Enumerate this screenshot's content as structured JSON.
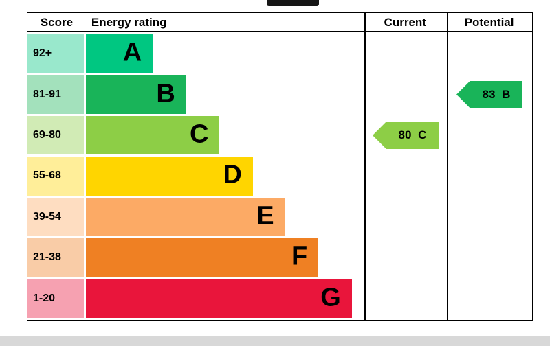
{
  "header": {
    "score": "Score",
    "energy_rating": "Energy rating",
    "current": "Current",
    "potential": "Potential"
  },
  "chart_data": {
    "type": "bar",
    "title": "Energy rating",
    "orientation": "horizontal",
    "bands": [
      {
        "letter": "A",
        "score_range": "92+",
        "color": "#00c781",
        "tint": "#99e8cc",
        "width_pct": 24
      },
      {
        "letter": "B",
        "score_range": "81-91",
        "color": "#19b459",
        "tint": "#a3e1bc",
        "width_pct": 36
      },
      {
        "letter": "C",
        "score_range": "69-80",
        "color": "#8dce46",
        "tint": "#d1ebb5",
        "width_pct": 48
      },
      {
        "letter": "D",
        "score_range": "55-68",
        "color": "#ffd500",
        "tint": "#ffee99",
        "width_pct": 60
      },
      {
        "letter": "E",
        "score_range": "39-54",
        "color": "#fcaa65",
        "tint": "#feddc1",
        "width_pct": 71.5
      },
      {
        "letter": "F",
        "score_range": "21-38",
        "color": "#ef8023",
        "tint": "#f9cca7",
        "width_pct": 83.5
      },
      {
        "letter": "G",
        "score_range": "1-20",
        "color": "#e9153b",
        "tint": "#f6a1b1",
        "width_pct": 95.5
      }
    ],
    "current": {
      "value": 80,
      "band": "C",
      "label": "80 C",
      "row_index": 2,
      "color": "#8dce46"
    },
    "potential": {
      "value": 83,
      "band": "B",
      "label": "83 B",
      "row_index": 1,
      "color": "#19b459"
    }
  }
}
